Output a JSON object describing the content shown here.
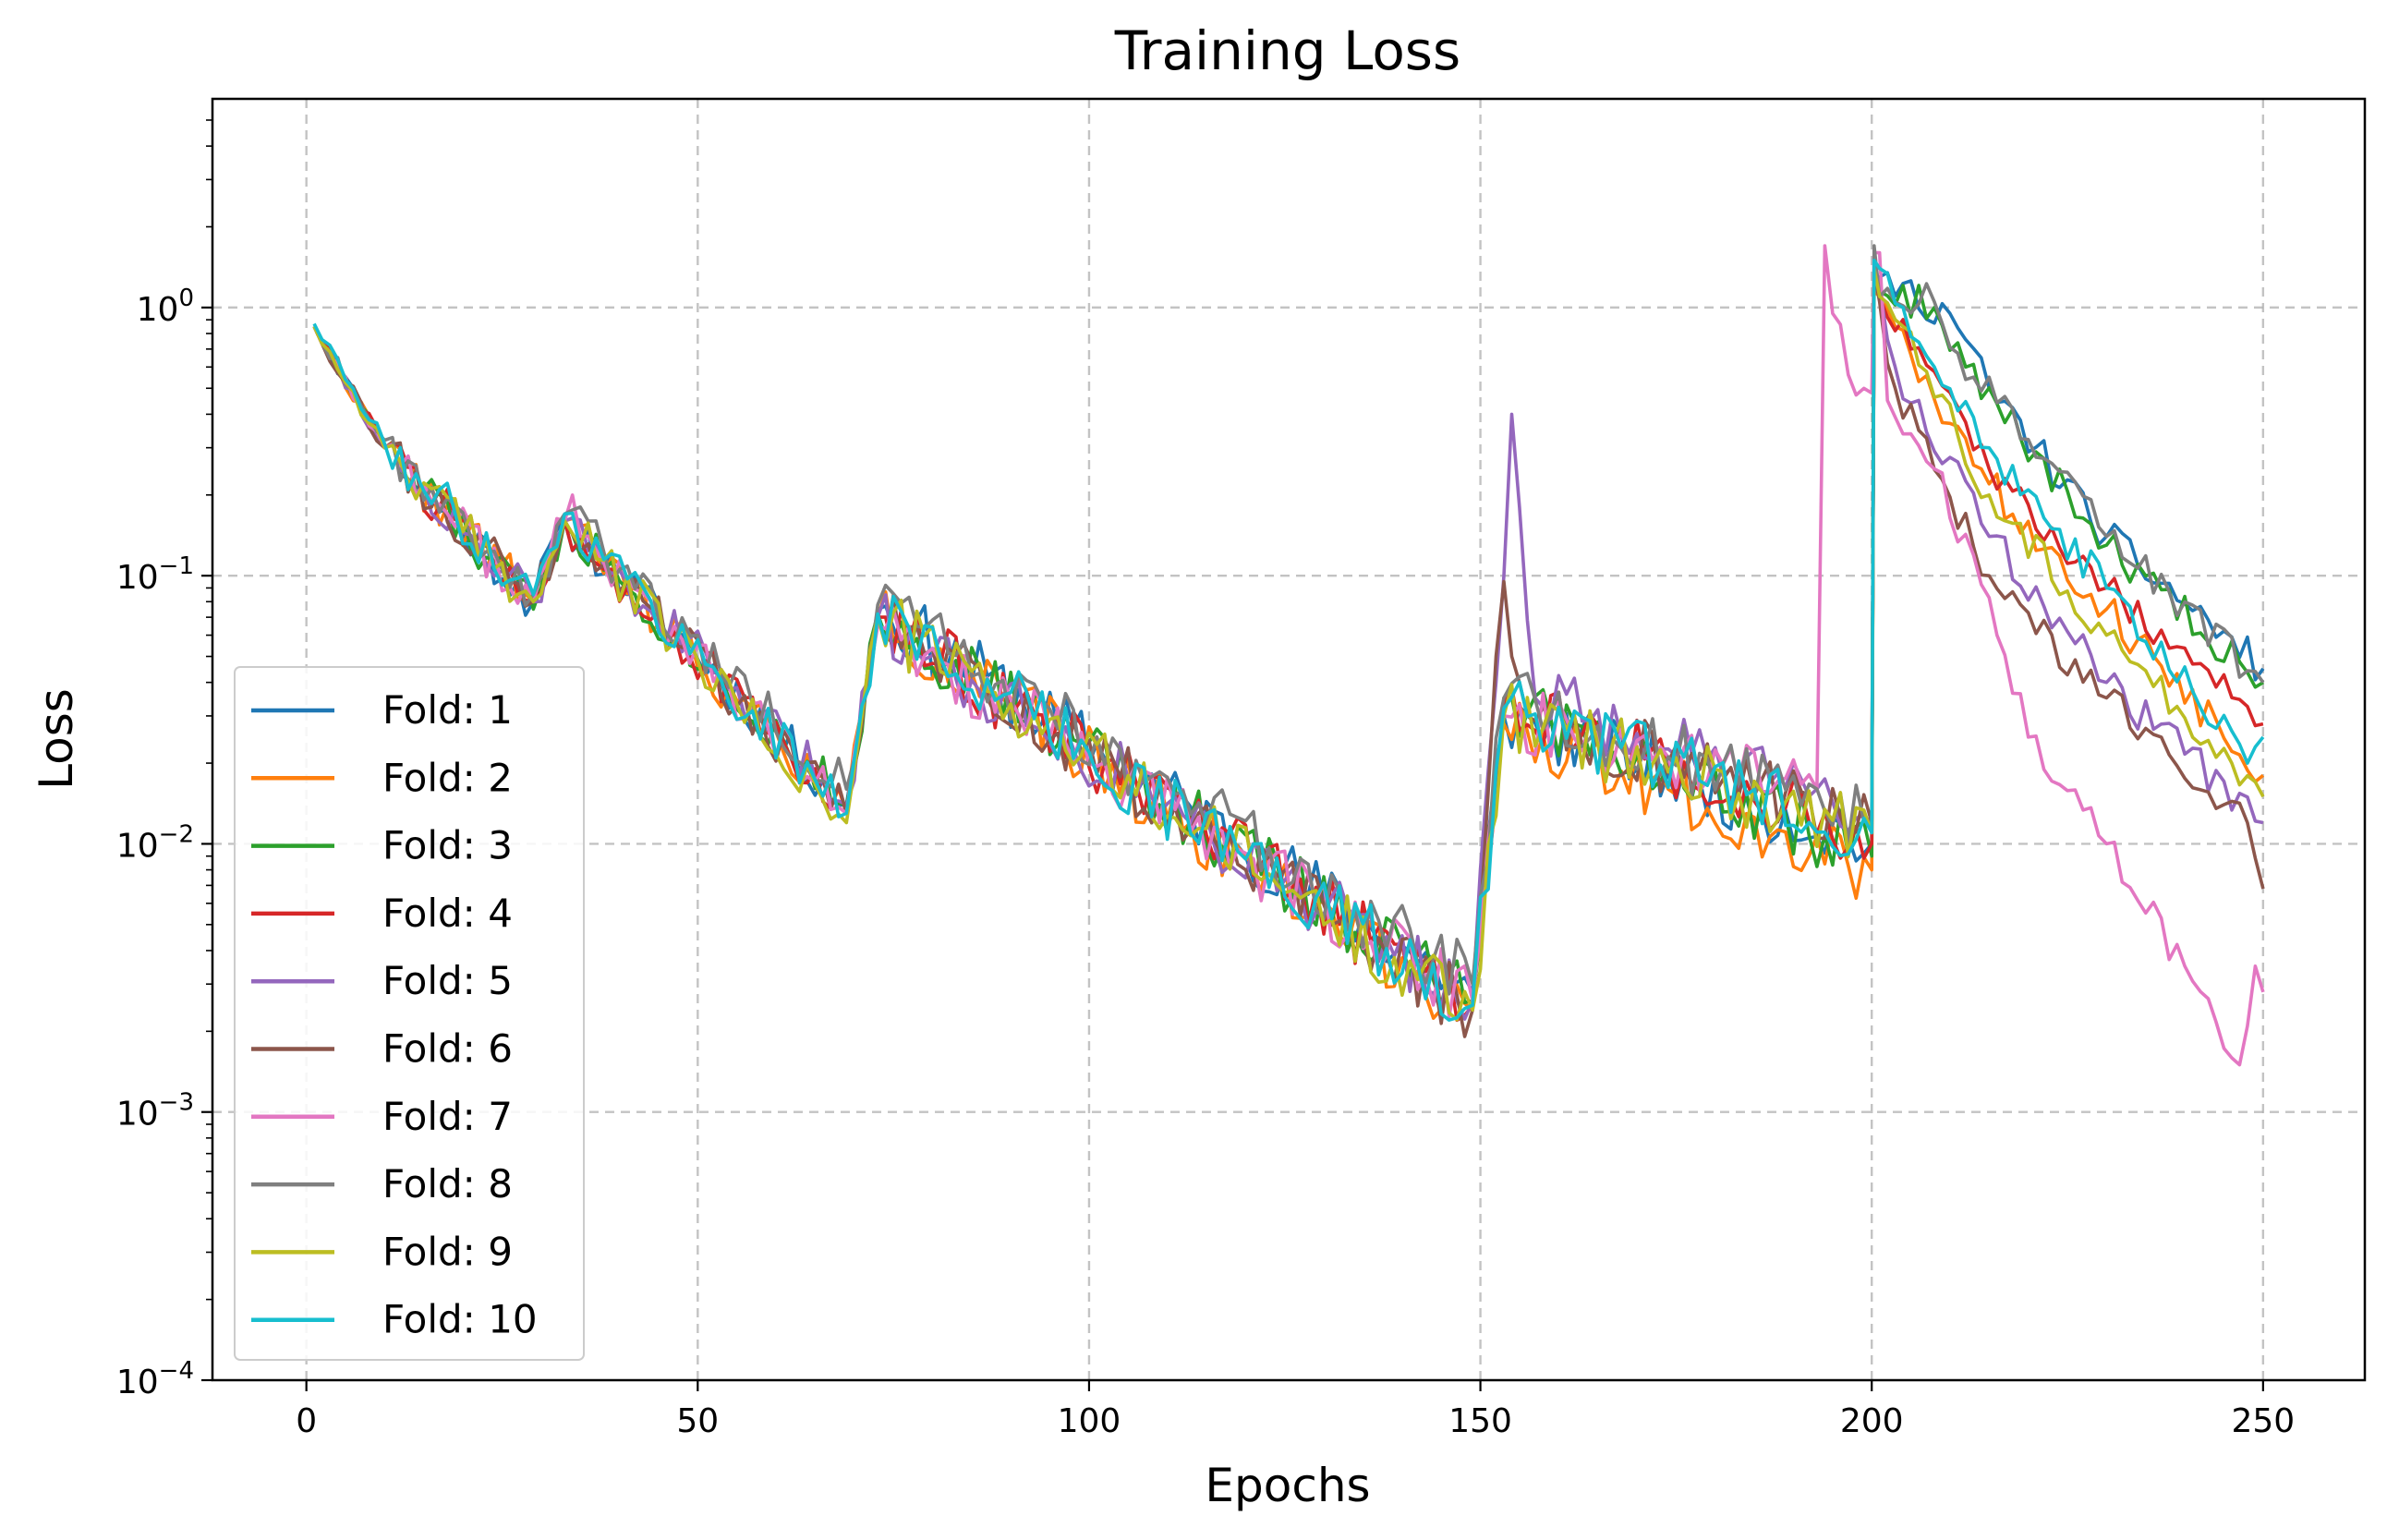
{
  "chart_data": {
    "type": "line",
    "title": "Training Loss",
    "xlabel": "Epochs",
    "ylabel": "Loss",
    "yscale": "log",
    "xlim": [
      -12,
      263
    ],
    "ylim": [
      0.0001,
      6
    ],
    "xticks": [
      0,
      50,
      100,
      150,
      200,
      250
    ],
    "yticks": [
      {
        "value": 0.0001,
        "base": "10",
        "exp": "−4"
      },
      {
        "value": 0.001,
        "base": "10",
        "exp": "−3"
      },
      {
        "value": 0.01,
        "base": "10",
        "exp": "−2"
      },
      {
        "value": 0.1,
        "base": "10",
        "exp": "−1"
      },
      {
        "value": 1,
        "base": "10",
        "exp": "0"
      }
    ],
    "grid": true,
    "legend_position": "lower-left",
    "phase_boundaries": [
      30,
      72,
      150,
      200
    ],
    "series": [
      {
        "name": "Fold: 1",
        "color": "#1f77b4",
        "seed": 11,
        "spike_epoch": null,
        "ep200": 1.25,
        "base": [
          [
            1,
            0.85
          ],
          [
            10,
            0.3
          ],
          [
            29,
            0.08
          ],
          [
            33,
            0.16
          ],
          [
            69,
            0.014
          ],
          [
            73,
            0.075
          ],
          [
            149,
            0.0028
          ],
          [
            153,
            0.03
          ],
          [
            200,
            0.01
          ],
          [
            201,
            1.3
          ],
          [
            210,
            0.95
          ],
          [
            215,
            0.5
          ],
          [
            230,
            0.14
          ],
          [
            250,
            0.045
          ]
        ]
      },
      {
        "name": "Fold: 2",
        "color": "#ff7f0e",
        "seed": 22,
        "spike_epoch": null,
        "ep200": 1.15,
        "base": [
          [
            1,
            0.85
          ],
          [
            10,
            0.3
          ],
          [
            29,
            0.08
          ],
          [
            33,
            0.16
          ],
          [
            69,
            0.013
          ],
          [
            73,
            0.07
          ],
          [
            149,
            0.0024
          ],
          [
            153,
            0.028
          ],
          [
            200,
            0.008
          ],
          [
            201,
            1.1
          ],
          [
            203,
            0.85
          ],
          [
            215,
            0.22
          ],
          [
            230,
            0.075
          ],
          [
            250,
            0.018
          ]
        ]
      },
      {
        "name": "Fold: 3",
        "color": "#2ca02c",
        "seed": 33,
        "spike_epoch": null,
        "ep200": 1.3,
        "base": [
          [
            1,
            0.85
          ],
          [
            10,
            0.3
          ],
          [
            29,
            0.075
          ],
          [
            33,
            0.16
          ],
          [
            69,
            0.014
          ],
          [
            73,
            0.072
          ],
          [
            149,
            0.0026
          ],
          [
            153,
            0.035
          ],
          [
            200,
            0.009
          ],
          [
            201,
            1.15
          ],
          [
            208,
            1.0
          ],
          [
            212,
            0.6
          ],
          [
            230,
            0.13
          ],
          [
            250,
            0.04
          ]
        ]
      },
      {
        "name": "Fold: 4",
        "color": "#d62728",
        "seed": 44,
        "spike_epoch": null,
        "ep200": 1.3,
        "base": [
          [
            1,
            0.85
          ],
          [
            10,
            0.3
          ],
          [
            29,
            0.08
          ],
          [
            33,
            0.16
          ],
          [
            69,
            0.013
          ],
          [
            73,
            0.07
          ],
          [
            149,
            0.0025
          ],
          [
            153,
            0.033
          ],
          [
            200,
            0.01
          ],
          [
            201,
            1.1
          ],
          [
            205,
            0.7
          ],
          [
            215,
            0.25
          ],
          [
            230,
            0.09
          ],
          [
            250,
            0.028
          ]
        ]
      },
      {
        "name": "Fold: 5",
        "color": "#9467bd",
        "seed": 55,
        "spike_epoch": 154,
        "ep200": 1.35,
        "base": [
          [
            1,
            0.85
          ],
          [
            10,
            0.3
          ],
          [
            29,
            0.08
          ],
          [
            33,
            0.16
          ],
          [
            69,
            0.014
          ],
          [
            73,
            0.07
          ],
          [
            149,
            0.0026
          ],
          [
            152,
            0.04
          ],
          [
            153,
            0.1
          ],
          [
            154,
            0.4
          ],
          [
            155,
            0.18
          ],
          [
            157,
            0.035
          ],
          [
            200,
            0.012
          ],
          [
            201,
            1.2
          ],
          [
            203,
            0.6
          ],
          [
            215,
            0.14
          ],
          [
            230,
            0.04
          ],
          [
            250,
            0.012
          ]
        ]
      },
      {
        "name": "Fold: 6",
        "color": "#8c564b",
        "seed": 66,
        "spike_epoch": 153,
        "ep200": 1.35,
        "base": [
          [
            1,
            0.85
          ],
          [
            10,
            0.3
          ],
          [
            29,
            0.08
          ],
          [
            33,
            0.16
          ],
          [
            69,
            0.013
          ],
          [
            73,
            0.07
          ],
          [
            149,
            0.0024
          ],
          [
            152,
            0.05
          ],
          [
            153,
            0.095
          ],
          [
            154,
            0.05
          ],
          [
            156,
            0.03
          ],
          [
            200,
            0.012
          ],
          [
            201,
            1.05
          ],
          [
            203,
            0.5
          ],
          [
            215,
            0.1
          ],
          [
            230,
            0.035
          ],
          [
            248,
            0.012
          ],
          [
            250,
            0.0068
          ]
        ]
      },
      {
        "name": "Fold: 7",
        "color": "#e377c2",
        "seed": 77,
        "spike_epoch": 194,
        "ep200": 1.6,
        "base": [
          [
            1,
            0.85
          ],
          [
            10,
            0.3
          ],
          [
            29,
            0.08
          ],
          [
            33,
            0.16
          ],
          [
            34,
            0.2
          ],
          [
            35,
            0.14
          ],
          [
            69,
            0.013
          ],
          [
            73,
            0.065
          ],
          [
            149,
            0.0026
          ],
          [
            153,
            0.03
          ],
          [
            193,
            0.016
          ],
          [
            194,
            1.7
          ],
          [
            195,
            0.95
          ],
          [
            199,
            0.5
          ],
          [
            200,
            0.48
          ],
          [
            201,
            1.6
          ],
          [
            202,
            0.45
          ],
          [
            208,
            0.25
          ],
          [
            216,
            0.06
          ],
          [
            220,
            0.025
          ],
          [
            230,
            0.01
          ],
          [
            240,
            0.0035
          ],
          [
            247,
            0.0015
          ],
          [
            249,
            0.0035
          ],
          [
            250,
            0.0028
          ]
        ]
      },
      {
        "name": "Fold: 8",
        "color": "#7f7f7f",
        "seed": 88,
        "spike_epoch": null,
        "ep200": 1.7,
        "base": [
          [
            1,
            0.85
          ],
          [
            10,
            0.32
          ],
          [
            29,
            0.085
          ],
          [
            33,
            0.17
          ],
          [
            69,
            0.016
          ],
          [
            73,
            0.078
          ],
          [
            149,
            0.003
          ],
          [
            153,
            0.035
          ],
          [
            200,
            0.012
          ],
          [
            201,
            1.1
          ],
          [
            208,
            1.05
          ],
          [
            213,
            0.55
          ],
          [
            230,
            0.14
          ],
          [
            250,
            0.04
          ]
        ]
      },
      {
        "name": "Fold: 9",
        "color": "#bcbd22",
        "seed": 99,
        "spike_epoch": null,
        "ep200": 1.4,
        "base": [
          [
            1,
            0.85
          ],
          [
            10,
            0.3
          ],
          [
            29,
            0.08
          ],
          [
            33,
            0.16
          ],
          [
            69,
            0.012
          ],
          [
            73,
            0.07
          ],
          [
            149,
            0.0024
          ],
          [
            153,
            0.03
          ],
          [
            200,
            0.011
          ],
          [
            201,
            1.1
          ],
          [
            204,
            0.85
          ],
          [
            215,
            0.2
          ],
          [
            230,
            0.06
          ],
          [
            250,
            0.015
          ]
        ]
      },
      {
        "name": "Fold: 10",
        "color": "#17becf",
        "seed": 111,
        "spike_epoch": null,
        "ep200": 1.5,
        "base": [
          [
            1,
            0.87
          ],
          [
            10,
            0.31
          ],
          [
            29,
            0.085
          ],
          [
            33,
            0.17
          ],
          [
            69,
            0.013
          ],
          [
            73,
            0.072
          ],
          [
            149,
            0.0025
          ],
          [
            153,
            0.032
          ],
          [
            200,
            0.011
          ],
          [
            201,
            1.4
          ],
          [
            204,
            1.0
          ],
          [
            215,
            0.3
          ],
          [
            230,
            0.09
          ],
          [
            248,
            0.02
          ],
          [
            250,
            0.025
          ]
        ]
      }
    ]
  }
}
